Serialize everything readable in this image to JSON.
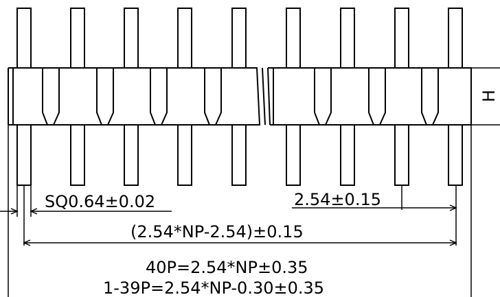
{
  "labels": {
    "pin_square": "SQ0.64±0.02",
    "pitch": "2.54±0.15",
    "pin_span": "(2.54*NP-2.54)±0.15",
    "overall_40p": "40P=2.54*NP±0.35",
    "overall_1_39p": "1-39P=2.54*NP-0.30±0.35",
    "height_symbol": "H"
  },
  "colors": {
    "line": "#000000",
    "background": "#ffffff"
  }
}
